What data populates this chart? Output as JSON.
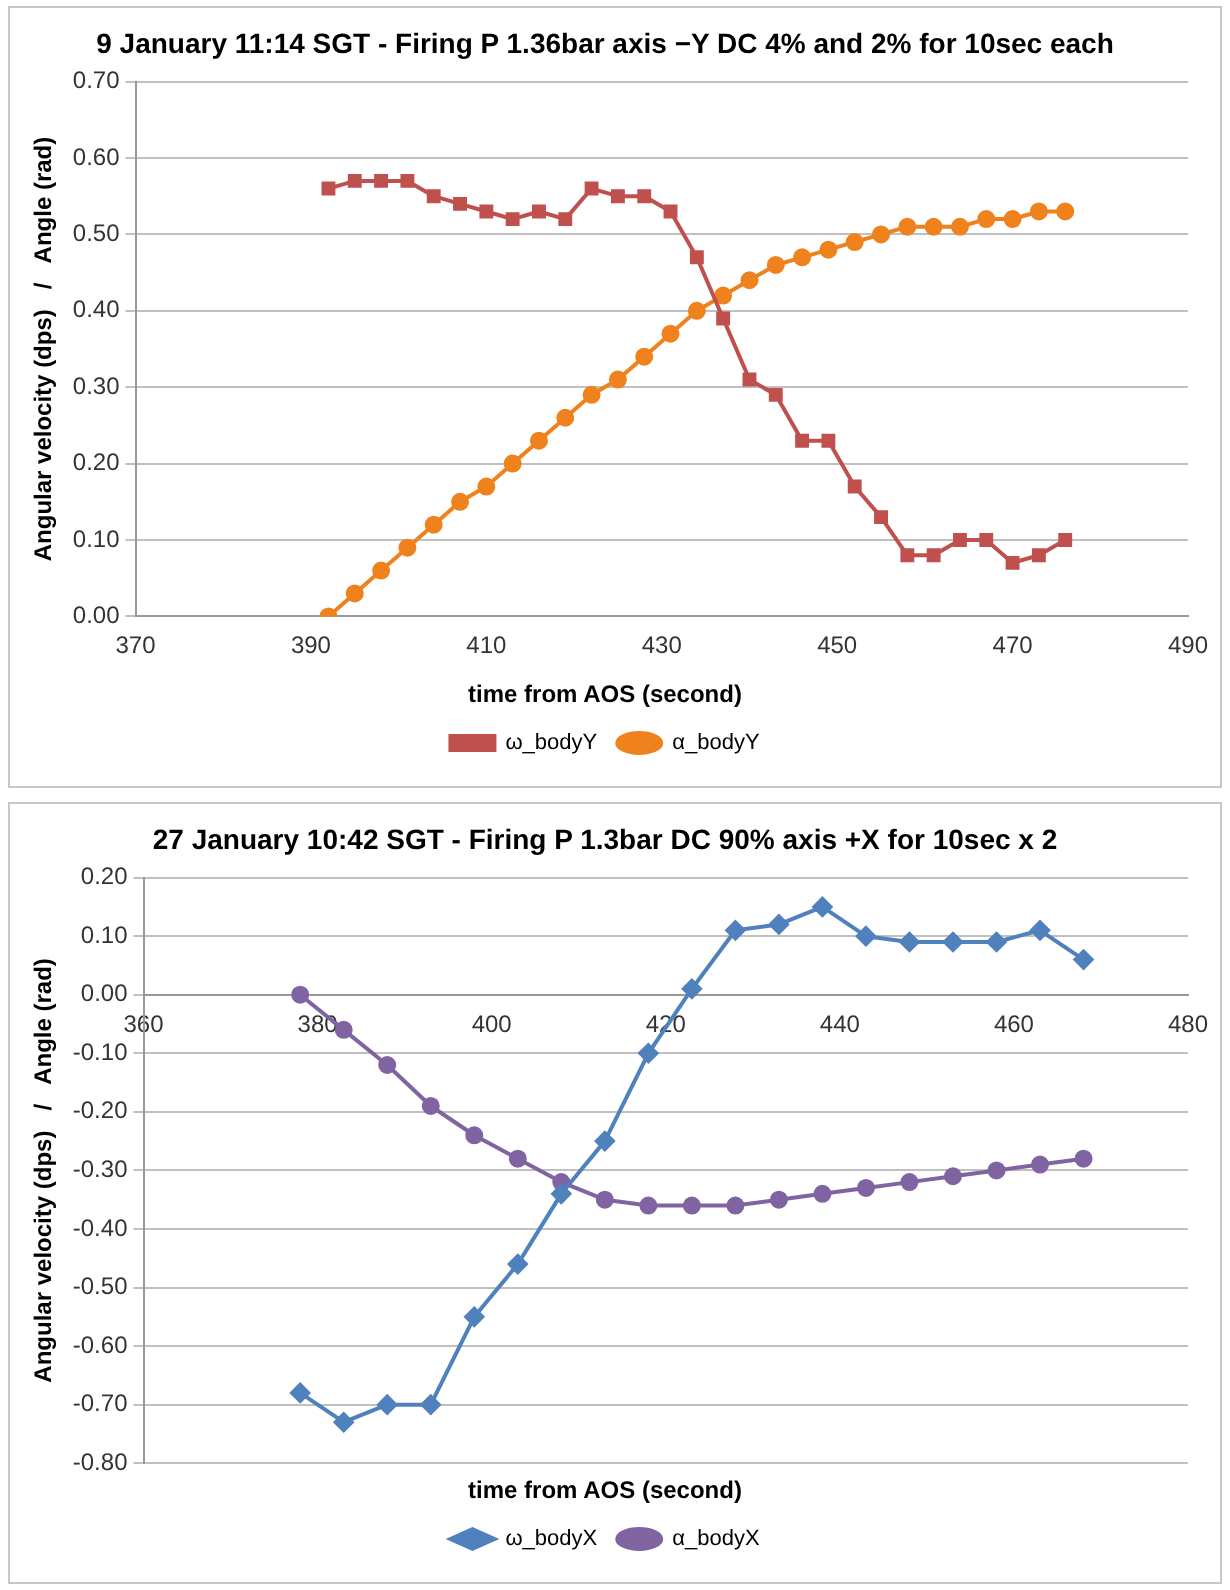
{
  "chart_data": [
    {
      "type": "line",
      "title": "9 January 11:14 SGT - Firing P 1.36bar axis −Y DC 4% and 2% for 10sec each",
      "xlabel": "time from AOS (second)",
      "ylabel": "Angular velocity (dps)   /   Angle (rad)",
      "x": [
        392,
        395,
        398,
        401,
        404,
        407,
        410,
        413,
        416,
        419,
        422,
        425,
        428,
        431,
        434,
        437,
        440,
        443,
        446,
        449,
        452,
        455,
        458,
        461,
        464,
        467,
        470,
        473,
        476
      ],
      "series": [
        {
          "name": "ω_bodyY",
          "color": "#c0504d",
          "marker": "square",
          "values": [
            0.56,
            0.57,
            0.57,
            0.57,
            0.55,
            0.54,
            0.53,
            0.52,
            0.53,
            0.52,
            0.56,
            0.55,
            0.55,
            0.53,
            0.47,
            0.39,
            0.31,
            0.29,
            0.23,
            0.23,
            0.17,
            0.13,
            0.08,
            0.08,
            0.1,
            0.1,
            0.07,
            0.08,
            0.1
          ]
        },
        {
          "name": "α_bodyY",
          "color": "#f0821e",
          "marker": "circle",
          "values": [
            0.0,
            0.03,
            0.06,
            0.09,
            0.12,
            0.15,
            0.17,
            0.2,
            0.23,
            0.26,
            0.29,
            0.31,
            0.34,
            0.37,
            0.4,
            0.42,
            0.44,
            0.46,
            0.47,
            0.48,
            0.49,
            0.5,
            0.51,
            0.51,
            0.51,
            0.52,
            0.52,
            0.53,
            0.53
          ]
        }
      ],
      "xlim": [
        370,
        490
      ],
      "xticks": [
        370,
        390,
        410,
        430,
        450,
        470,
        490
      ],
      "ylim": [
        0,
        0.7
      ],
      "yticks": [
        {
          "value": 0,
          "label": "0.00"
        },
        {
          "value": 0.1,
          "label": "0.10"
        },
        {
          "value": 0.2,
          "label": "0.20"
        },
        {
          "value": 0.3,
          "label": "0.30"
        },
        {
          "value": 0.4,
          "label": "0.40"
        },
        {
          "value": 0.5,
          "label": "0.50"
        },
        {
          "value": 0.6,
          "label": "0.60"
        },
        {
          "value": 0.7,
          "label": "0.70"
        }
      ],
      "grid": "y",
      "legend": "bottom"
    },
    {
      "type": "line",
      "title": "27 January 10:42 SGT - Firing P 1.3bar DC 90% axis +X for 10sec x 2",
      "xlabel": "time from AOS (second)",
      "ylabel": "Angular velocity (dps)   /   Angle (rad)",
      "x": [
        378,
        383,
        388,
        393,
        398,
        403,
        408,
        413,
        418,
        423,
        428,
        433,
        438,
        443,
        448,
        453,
        458,
        463,
        468
      ],
      "series": [
        {
          "name": "ω_bodyX",
          "color": "#4f81bd",
          "marker": "diamond",
          "values": [
            -0.68,
            -0.73,
            -0.7,
            -0.7,
            -0.55,
            -0.46,
            -0.34,
            -0.25,
            -0.1,
            0.01,
            0.11,
            0.12,
            0.15,
            0.1,
            0.09,
            0.09,
            0.09,
            0.11,
            0.06
          ]
        },
        {
          "name": "α_bodyX",
          "color": "#8064a2",
          "marker": "circle",
          "values": [
            0.0,
            -0.06,
            -0.12,
            -0.19,
            -0.24,
            -0.28,
            -0.32,
            -0.35,
            -0.36,
            -0.36,
            -0.36,
            -0.35,
            -0.34,
            -0.33,
            -0.32,
            -0.31,
            -0.3,
            -0.29,
            -0.28
          ]
        }
      ],
      "xlim": [
        360,
        480
      ],
      "xticks": [
        360,
        380,
        400,
        420,
        440,
        460,
        480
      ],
      "ylim": [
        -0.8,
        0.2
      ],
      "yticks": [
        {
          "value": -0.8,
          "label": "-0.80"
        },
        {
          "value": -0.7,
          "label": "-0.70"
        },
        {
          "value": -0.6,
          "label": "-0.60"
        },
        {
          "value": -0.5,
          "label": "-0.50"
        },
        {
          "value": -0.4,
          "label": "-0.40"
        },
        {
          "value": -0.3,
          "label": "-0.30"
        },
        {
          "value": -0.2,
          "label": "-0.20"
        },
        {
          "value": -0.1,
          "label": "-0.10"
        },
        {
          "value": 0,
          "label": "0.00"
        },
        {
          "value": 0.1,
          "label": "0.10"
        },
        {
          "value": 0.2,
          "label": "0.20"
        }
      ],
      "grid": "y",
      "legend": "bottom"
    }
  ]
}
